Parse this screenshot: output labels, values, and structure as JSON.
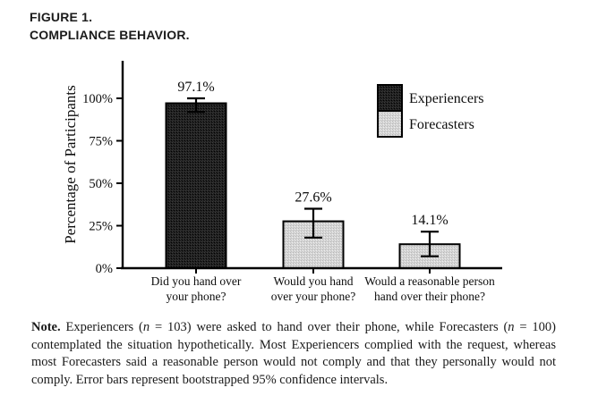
{
  "figure": {
    "label": "FIGURE 1.",
    "title": "COMPLIANCE BEHAVIOR."
  },
  "chart_data": {
    "type": "bar",
    "title": "",
    "xlabel": "",
    "ylabel": "Percentage of Participants",
    "ylim": [
      0,
      100
    ],
    "grid": false,
    "legend_position": "upper-right",
    "error_bars": "bootstrapped 95% confidence intervals",
    "yticks": [
      {
        "value": 0,
        "label": "0%"
      },
      {
        "value": 25,
        "label": "25%"
      },
      {
        "value": 50,
        "label": "50%"
      },
      {
        "value": 75,
        "label": "75%"
      },
      {
        "value": 100,
        "label": "100%"
      }
    ],
    "categories": [
      {
        "lines": [
          "Did you hand over",
          "your phone?"
        ]
      },
      {
        "lines": [
          "Would you hand",
          "over your phone?"
        ]
      },
      {
        "lines": [
          "Would a reasonable person",
          "hand over their phone?"
        ]
      }
    ],
    "bars": [
      {
        "series": "Experiencers",
        "value": 97.1,
        "label": "97.1%",
        "ci_low": 92.0,
        "ci_high": 100.0
      },
      {
        "series": "Forecasters",
        "value": 27.6,
        "label": "27.6%",
        "ci_low": 18.0,
        "ci_high": 35.0
      },
      {
        "series": "Forecasters",
        "value": 14.1,
        "label": "14.1%",
        "ci_low": 7.0,
        "ci_high": 21.5
      }
    ],
    "legend": [
      {
        "label": "Experiencers",
        "color": "#202020",
        "texture": "dark-stipple"
      },
      {
        "label": "Forecasters",
        "color": "#d6d6d6",
        "texture": "light-stipple"
      }
    ]
  },
  "note": {
    "runs": [
      {
        "text": "Note."
      },
      {
        "text": " Experiencers ("
      },
      {
        "text": "n"
      },
      {
        "text": " = 103) were asked to hand over their phone, while Forecasters ("
      },
      {
        "text": "n"
      },
      {
        "text": " = 100) contemplated the situation hypothetically. Most Experiencers complied with the request, whereas most Forecasters said a reasonable person would not comply and that they personally would not comply. Error bars represent bootstrapped 95% confidence intervals."
      }
    ]
  }
}
